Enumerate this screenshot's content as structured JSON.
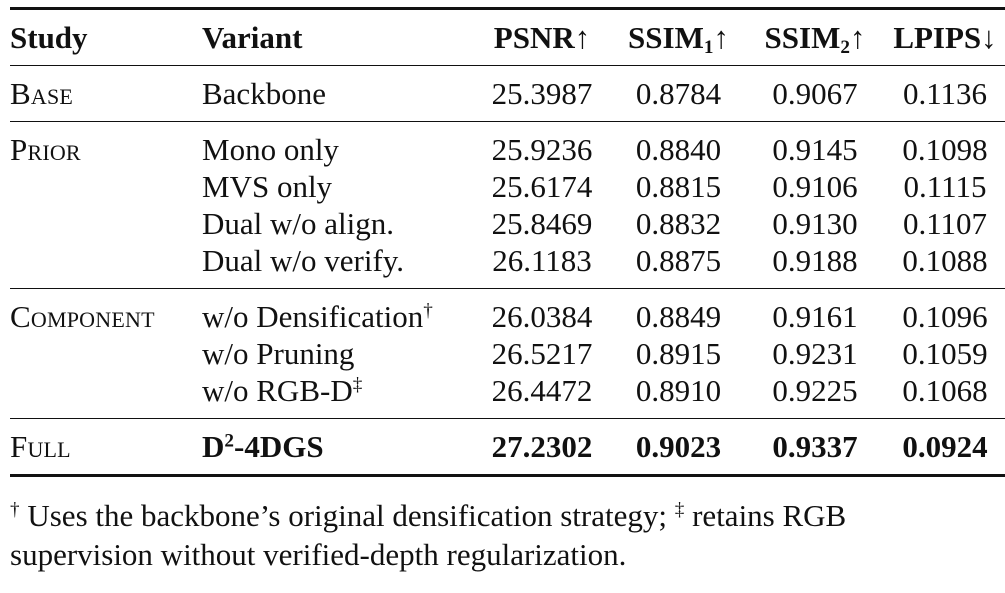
{
  "table": {
    "headers": {
      "study": "Study",
      "variant": "Variant",
      "psnr": "PSNR↑",
      "ssim1_main": "SSIM",
      "ssim1_sub": "1",
      "ssim1_arrow": "↑",
      "ssim2_main": "SSIM",
      "ssim2_sub": "2",
      "ssim2_arrow": "↑",
      "lpips": "LPIPS↓"
    },
    "base": {
      "study": "Base",
      "rows": [
        {
          "variant": "Backbone",
          "psnr": "25.3987",
          "ssim1": "0.8784",
          "ssim2": "0.9067",
          "lpips": "0.1136"
        }
      ]
    },
    "prior": {
      "study": "Prior",
      "rows": [
        {
          "variant": "Mono only",
          "psnr": "25.9236",
          "ssim1": "0.8840",
          "ssim2": "0.9145",
          "lpips": "0.1098"
        },
        {
          "variant": "MVS only",
          "psnr": "25.6174",
          "ssim1": "0.8815",
          "ssim2": "0.9106",
          "lpips": "0.1115"
        },
        {
          "variant": "Dual w/o align.",
          "psnr": "25.8469",
          "ssim1": "0.8832",
          "ssim2": "0.9130",
          "lpips": "0.1107"
        },
        {
          "variant": "Dual w/o verify.",
          "psnr": "26.1183",
          "ssim1": "0.8875",
          "ssim2": "0.9188",
          "lpips": "0.1088"
        }
      ]
    },
    "component": {
      "study": "Component",
      "rows": [
        {
          "variant": "w/o Densification",
          "mark": "†",
          "psnr": "26.0384",
          "ssim1": "0.8849",
          "ssim2": "0.9161",
          "lpips": "0.1096"
        },
        {
          "variant": "w/o Pruning",
          "mark": "",
          "psnr": "26.5217",
          "ssim1": "0.8915",
          "ssim2": "0.9231",
          "lpips": "0.1059"
        },
        {
          "variant": "w/o RGB-D",
          "mark": "‡",
          "psnr": "26.4472",
          "ssim1": "0.8910",
          "ssim2": "0.9225",
          "lpips": "0.1068"
        }
      ]
    },
    "full": {
      "study": "Full",
      "variant_main": "D",
      "variant_sup": "2",
      "variant_rest": "-4DGS",
      "psnr": "27.2302",
      "ssim1": "0.9023",
      "ssim2": "0.9337",
      "lpips": "0.0924"
    }
  },
  "footnote": {
    "dagger": "†",
    "text1": " Uses the backbone’s original densification strategy; ",
    "ddagger": "‡",
    "text2": " retains RGB",
    "line2": "supervision without verified-depth regularization."
  }
}
